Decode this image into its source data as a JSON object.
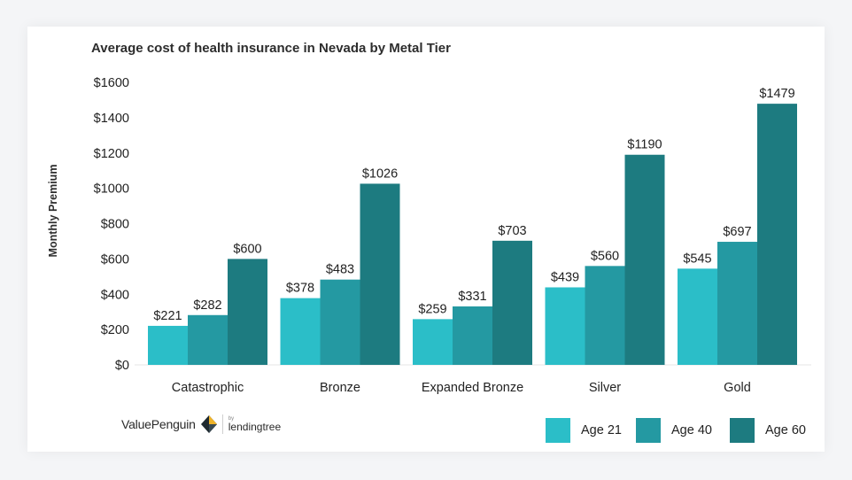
{
  "chart_data": {
    "type": "bar",
    "title": "Average cost of health insurance in Nevada by Metal Tier",
    "ylabel": "Monthly Premium",
    "categories": [
      "Catastrophic",
      "Bronze",
      "Expanded Bronze",
      "Silver",
      "Gold"
    ],
    "series": [
      {
        "name": "Age 21",
        "color": "#2bbec8",
        "values": [
          221,
          378,
          259,
          439,
          545
        ],
        "labels": [
          "$221",
          "$378",
          "$259",
          "$439",
          "$545"
        ]
      },
      {
        "name": "Age 40",
        "color": "#2499a2",
        "values": [
          282,
          483,
          331,
          560,
          697
        ],
        "labels": [
          "$282",
          "$483",
          "$331",
          "$560",
          "$697"
        ]
      },
      {
        "name": "Age 60",
        "color": "#1d7b80",
        "values": [
          600,
          1026,
          703,
          1190,
          1479
        ],
        "labels": [
          "$600",
          "$1026",
          "$703",
          "$1190",
          "$1479"
        ]
      }
    ],
    "ylim": [
      0,
      1600
    ],
    "yticks": [
      0,
      200,
      400,
      600,
      800,
      1000,
      1200,
      1400,
      1600
    ],
    "ytick_labels": [
      "$0",
      "$200",
      "$400",
      "$600",
      "$800",
      "$1000",
      "$1200",
      "$1400",
      "$1600"
    ],
    "legend_position": "bottom-right",
    "grid": false
  },
  "branding": {
    "name": "ValuePenguin",
    "by": "by",
    "partner": "lendingtree"
  }
}
